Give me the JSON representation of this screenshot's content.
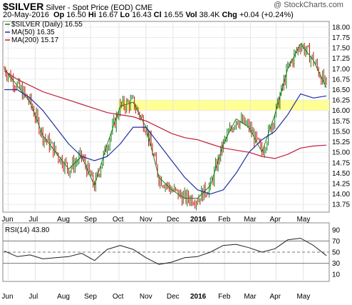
{
  "header": {
    "symbol": "$SILVER",
    "name": "Silver - Spot Price (EOD)",
    "exchange": "CME",
    "watermark": "@ StockCharts.com",
    "date": "20-May-2016",
    "op_label": "Op",
    "op": "16.50",
    "hi_label": "Hi",
    "hi": "16.67",
    "lo_label": "Lo",
    "lo": "16.43",
    "cl_label": "Cl",
    "cl": "16.55",
    "vol_label": "Vol",
    "vol": "38.4K",
    "chg_label": "Chg",
    "chg": "+0.04 (+0.24%)"
  },
  "colors": {
    "price": "#1a7d1a",
    "down": "#d01010",
    "ma50": "#1f2fa0",
    "ma200": "#c0203a",
    "highlight": "#ffff88",
    "rsi": "#222222"
  },
  "chart_data": [
    {
      "type": "line",
      "legend": [
        {
          "label": "$SILVER (Daily) 16.55",
          "color": "#1a7d1a"
        },
        {
          "label": "MA(50) 16.35",
          "color": "#1f2fa0"
        },
        {
          "label": "MA(200) 15.17",
          "color": "#c0203a"
        }
      ],
      "x_ticks": [
        "Jun",
        "Jul",
        "Aug",
        "Sep",
        "Oct",
        "Nov",
        "Dec",
        "2016",
        "Feb",
        "Mar",
        "Apr",
        "May"
      ],
      "y_ticks": [
        "18.00",
        "17.75",
        "17.50",
        "17.25",
        "17.00",
        "16.75",
        "16.50",
        "16.25",
        "16.00",
        "15.75",
        "15.50",
        "15.25",
        "15.00",
        "14.75",
        "14.50",
        "14.25",
        "14.00",
        "13.75"
      ],
      "ylim": [
        13.6,
        18.1
      ],
      "highlight_band": [
        16.0,
        16.25
      ],
      "series": [
        {
          "name": "$SILVER",
          "x_index": [
            0,
            10,
            20,
            30,
            40,
            50,
            60,
            70,
            80,
            90,
            100,
            110,
            120,
            130,
            140,
            150,
            160,
            170,
            180,
            190,
            200,
            210,
            220,
            230,
            240,
            250
          ],
          "values": [
            17.0,
            16.6,
            16.2,
            15.4,
            15.0,
            14.6,
            14.9,
            14.2,
            15.2,
            16.1,
            16.2,
            15.6,
            14.4,
            14.1,
            13.9,
            13.9,
            14.2,
            15.2,
            15.8,
            15.6,
            15.0,
            15.9,
            17.0,
            17.6,
            17.2,
            16.55
          ]
        },
        {
          "name": "MA(50)",
          "x_index": [
            0,
            10,
            20,
            30,
            40,
            50,
            60,
            70,
            80,
            90,
            100,
            110,
            120,
            130,
            140,
            150,
            160,
            170,
            180,
            190,
            200,
            210,
            220,
            230,
            240,
            250
          ],
          "values": [
            16.5,
            16.5,
            16.3,
            16.0,
            15.6,
            15.2,
            14.9,
            14.8,
            14.9,
            15.2,
            15.6,
            15.6,
            15.2,
            14.8,
            14.4,
            14.1,
            14.0,
            14.1,
            14.5,
            15.0,
            15.3,
            15.5,
            15.9,
            16.4,
            16.3,
            16.35
          ]
        },
        {
          "name": "MA(200)",
          "x_index": [
            0,
            10,
            20,
            30,
            40,
            50,
            60,
            70,
            80,
            90,
            100,
            110,
            120,
            130,
            140,
            150,
            160,
            170,
            180,
            190,
            200,
            210,
            220,
            230,
            240,
            250
          ],
          "values": [
            16.95,
            16.75,
            16.6,
            16.45,
            16.35,
            16.25,
            16.15,
            16.05,
            15.95,
            15.9,
            15.85,
            15.75,
            15.6,
            15.45,
            15.35,
            15.3,
            15.2,
            15.1,
            15.05,
            15.0,
            14.9,
            14.85,
            14.95,
            15.1,
            15.15,
            15.17
          ]
        }
      ]
    },
    {
      "type": "line",
      "legend": [
        {
          "label": "RSI(14) 43.80",
          "color": "#222222"
        }
      ],
      "x_ticks": [
        "Jun",
        "Jul",
        "Aug",
        "Sep",
        "Oct",
        "Nov",
        "Dec",
        "2016",
        "Feb",
        "Mar",
        "Apr",
        "May"
      ],
      "y_ticks": [
        "90",
        "70",
        "50",
        "30",
        "10"
      ],
      "ylim": [
        0,
        100
      ],
      "reference_lines": [
        70,
        50,
        30
      ],
      "series": [
        {
          "name": "RSI(14)",
          "x_index": [
            0,
            10,
            20,
            30,
            40,
            50,
            60,
            70,
            80,
            90,
            100,
            110,
            120,
            130,
            140,
            150,
            160,
            170,
            180,
            190,
            200,
            210,
            220,
            230,
            240,
            250
          ],
          "values": [
            52,
            42,
            45,
            38,
            40,
            42,
            48,
            35,
            55,
            62,
            55,
            40,
            28,
            32,
            40,
            42,
            50,
            62,
            64,
            58,
            50,
            56,
            72,
            75,
            62,
            43.8
          ]
        }
      ]
    }
  ]
}
